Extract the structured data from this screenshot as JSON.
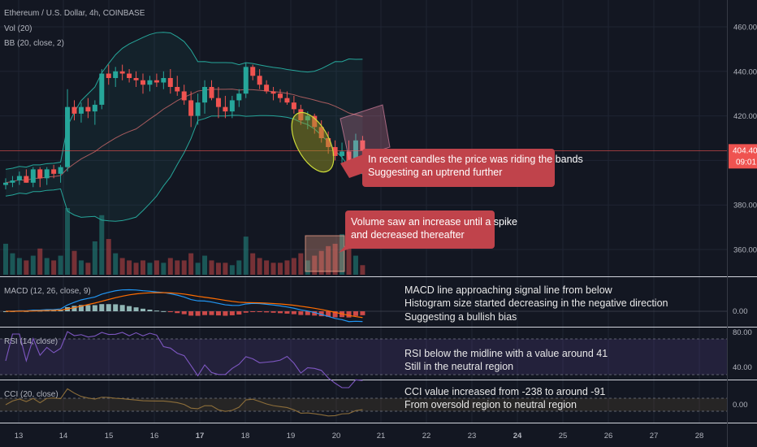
{
  "header": {
    "title": "Ethereum / U.S. Dollar, 4h, COINBASE",
    "vol_label": "Vol (20)",
    "bb_label": "BB (20, close, 2)"
  },
  "price_tag": {
    "price": "404.40",
    "countdown": "09:01"
  },
  "colors": {
    "up": "#26a69a",
    "down": "#ef5350",
    "bb": "#26a69a",
    "bb_mid": "#e57373",
    "macd": "#2196f3",
    "signal": "#ff6d00",
    "rsi": "#7e57c2",
    "cci": "#8d6e3a",
    "annotation": "#c0434b"
  },
  "panes": {
    "macd_label": "MACD (12, 26, close, 9)",
    "rsi_label": "RSI (14, close)",
    "cci_label": "CCI (20, close)"
  },
  "annotations": {
    "bands": [
      "In recent candles the price was riding the bands",
      "Suggesting an uptrend further"
    ],
    "volume": [
      "Volume saw an increase until a spike",
      "and decreased thereafter"
    ],
    "macd": [
      "MACD line approaching signal line from below",
      "Histogram size started decreasing in the negative direction",
      "Suggesting a bullish bias"
    ],
    "rsi": [
      "RSI below the midline with a value around 41",
      "Still in the neutral region"
    ],
    "cci": [
      "CCI value increased from -238 to around -91",
      "From oversold region to neutral region"
    ]
  },
  "chart_data": {
    "type": "candlestick",
    "title": "Ethereum / U.S. Dollar, 4h, COINBASE",
    "x_ticks": [
      "13",
      "14",
      "15",
      "16",
      "17",
      "18",
      "19",
      "20",
      "21",
      "22",
      "23",
      "24",
      "25",
      "26",
      "27",
      "28"
    ],
    "x_ticks_bold": [
      "17",
      "24"
    ],
    "price_axis": {
      "ticks": [
        360,
        380,
        400,
        420,
        440,
        460
      ],
      "range": [
        348,
        470
      ],
      "last": 404.4
    },
    "candles": [
      [
        389,
        392,
        387,
        390
      ],
      [
        390,
        393,
        388,
        391
      ],
      [
        391,
        395,
        389,
        393
      ],
      [
        393,
        396,
        390,
        390
      ],
      [
        390,
        397,
        388,
        396
      ],
      [
        396,
        397,
        388,
        392
      ],
      [
        392,
        397,
        389,
        396
      ],
      [
        396,
        398,
        392,
        394
      ],
      [
        394,
        398,
        390,
        397
      ],
      [
        397,
        432,
        395,
        424
      ],
      [
        424,
        427,
        418,
        421
      ],
      [
        421,
        426,
        417,
        424
      ],
      [
        424,
        428,
        419,
        422
      ],
      [
        422,
        427,
        416,
        425
      ],
      [
        425,
        441,
        423,
        439
      ],
      [
        439,
        443,
        434,
        437
      ],
      [
        437,
        442,
        433,
        440
      ],
      [
        440,
        443,
        436,
        439
      ],
      [
        439,
        441,
        435,
        437
      ],
      [
        437,
        440,
        433,
        436
      ],
      [
        436,
        439,
        430,
        434
      ],
      [
        434,
        438,
        431,
        436
      ],
      [
        436,
        439,
        433,
        435
      ],
      [
        435,
        440,
        432,
        437
      ],
      [
        437,
        441,
        430,
        433
      ],
      [
        433,
        438,
        429,
        431
      ],
      [
        431,
        434,
        425,
        427
      ],
      [
        427,
        431,
        415,
        420
      ],
      [
        420,
        430,
        416,
        426
      ],
      [
        426,
        436,
        421,
        433
      ],
      [
        433,
        436,
        427,
        428
      ],
      [
        428,
        433,
        419,
        424
      ],
      [
        424,
        429,
        419,
        422
      ],
      [
        422,
        429,
        419,
        427
      ],
      [
        427,
        432,
        424,
        430
      ],
      [
        430,
        444,
        428,
        442
      ],
      [
        442,
        443,
        436,
        438
      ],
      [
        438,
        441,
        432,
        434
      ],
      [
        434,
        436,
        430,
        431
      ],
      [
        431,
        433,
        427,
        430
      ],
      [
        430,
        432,
        426,
        428
      ],
      [
        428,
        431,
        425,
        426
      ],
      [
        426,
        429,
        421,
        423
      ],
      [
        423,
        425,
        416,
        418
      ],
      [
        418,
        422,
        414,
        420
      ],
      [
        420,
        421,
        412,
        415
      ],
      [
        415,
        418,
        408,
        410
      ],
      [
        410,
        413,
        403,
        406
      ],
      [
        406,
        409,
        400,
        402
      ],
      [
        402,
        408,
        398,
        404
      ],
      [
        404,
        409,
        395,
        396
      ],
      [
        396,
        412,
        394,
        409
      ],
      [
        409,
        411,
        402,
        404.4
      ]
    ],
    "volume": [
      13,
      9,
      7,
      6,
      8,
      11,
      7,
      6,
      8,
      28,
      10,
      6,
      5,
      14,
      25,
      15,
      9,
      7,
      6,
      5,
      6,
      5,
      6,
      5,
      7,
      6,
      6,
      9,
      5,
      8,
      6,
      5,
      5,
      4,
      6,
      16,
      9,
      7,
      6,
      5,
      5,
      6,
      7,
      9,
      6,
      8,
      10,
      12,
      13,
      17,
      12,
      8,
      4
    ]
  }
}
